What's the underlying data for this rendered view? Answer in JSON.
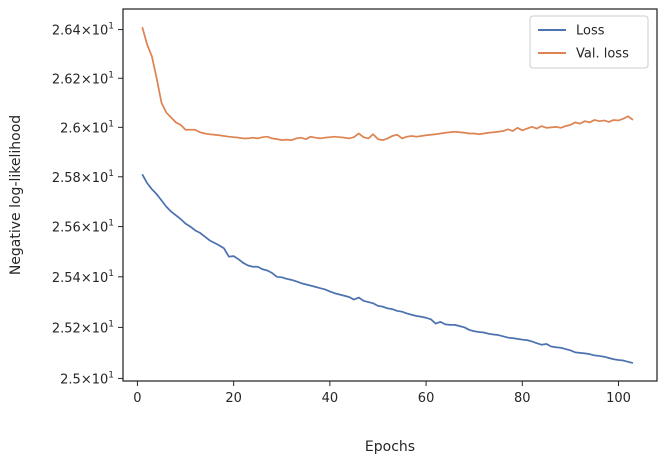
{
  "chart_data": {
    "type": "line",
    "xlabel": "Epochs",
    "ylabel": "Negative log-likelihood",
    "xlim": [
      -3,
      108
    ],
    "ylim": [
      24.99,
      26.485
    ],
    "y_scale": "log",
    "grid": false,
    "legend_position": "top-right",
    "x_ticks": [
      {
        "value": 0,
        "label": "0"
      },
      {
        "value": 20,
        "label": "20"
      },
      {
        "value": 40,
        "label": "40"
      },
      {
        "value": 60,
        "label": "60"
      },
      {
        "value": 80,
        "label": "80"
      },
      {
        "value": 100,
        "label": "100"
      }
    ],
    "y_ticks": [
      {
        "value": 25.0,
        "mantissa": "2.5",
        "base": "10",
        "exponent": "1"
      },
      {
        "value": 25.2,
        "mantissa": "2.52",
        "base": "10",
        "exponent": "1"
      },
      {
        "value": 25.4,
        "mantissa": "2.54",
        "base": "10",
        "exponent": "1"
      },
      {
        "value": 25.6,
        "mantissa": "2.56",
        "base": "10",
        "exponent": "1"
      },
      {
        "value": 25.8,
        "mantissa": "2.58",
        "base": "10",
        "exponent": "1"
      },
      {
        "value": 26.0,
        "mantissa": "2.6",
        "base": "10",
        "exponent": "1"
      },
      {
        "value": 26.2,
        "mantissa": "2.62",
        "base": "10",
        "exponent": "1"
      },
      {
        "value": 26.4,
        "mantissa": "2.64",
        "base": "10",
        "exponent": "1"
      }
    ],
    "series": [
      {
        "name": "Loss",
        "color": "#4c72b0",
        "x": [
          1,
          2,
          3,
          4,
          5,
          6,
          7,
          8,
          9,
          10,
          11,
          12,
          13,
          14,
          15,
          16,
          17,
          18,
          19,
          20,
          21,
          22,
          23,
          24,
          25,
          26,
          27,
          28,
          29,
          30,
          31,
          32,
          33,
          34,
          35,
          36,
          37,
          38,
          39,
          40,
          41,
          42,
          43,
          44,
          45,
          46,
          47,
          48,
          49,
          50,
          51,
          52,
          53,
          54,
          55,
          56,
          57,
          58,
          59,
          60,
          61,
          62,
          63,
          64,
          65,
          66,
          67,
          68,
          69,
          70,
          71,
          72,
          73,
          74,
          75,
          76,
          77,
          78,
          79,
          80,
          81,
          82,
          83,
          84,
          85,
          86,
          87,
          88,
          89,
          90,
          91,
          92,
          93,
          94,
          95,
          96,
          97,
          98,
          99,
          100,
          101,
          102,
          103
        ],
        "y": [
          25.81,
          25.775,
          25.75,
          25.73,
          25.705,
          25.68,
          25.66,
          25.645,
          25.63,
          25.612,
          25.6,
          25.585,
          25.575,
          25.56,
          25.545,
          25.535,
          25.525,
          25.513,
          25.48,
          25.482,
          25.47,
          25.455,
          25.445,
          25.44,
          25.44,
          25.43,
          25.425,
          25.415,
          25.4,
          25.398,
          25.392,
          25.388,
          25.382,
          25.375,
          25.37,
          25.365,
          25.36,
          25.355,
          25.35,
          25.342,
          25.335,
          25.33,
          25.325,
          25.32,
          25.31,
          25.318,
          25.305,
          25.3,
          25.295,
          25.285,
          25.282,
          25.275,
          25.272,
          25.265,
          25.262,
          25.255,
          25.25,
          25.245,
          25.242,
          25.238,
          25.232,
          25.215,
          25.222,
          25.212,
          25.21,
          25.21,
          25.205,
          25.2,
          25.19,
          25.185,
          25.182,
          25.18,
          25.175,
          25.172,
          25.17,
          25.165,
          25.16,
          25.158,
          25.155,
          25.152,
          25.15,
          25.145,
          25.138,
          25.132,
          25.135,
          25.125,
          25.122,
          25.12,
          25.115,
          25.11,
          25.102,
          25.1,
          25.098,
          25.095,
          25.09,
          25.088,
          25.085,
          25.08,
          25.075,
          25.072,
          25.07,
          25.065,
          25.06
        ]
      },
      {
        "name": "Val. loss",
        "color": "#dd8452",
        "x": [
          1,
          2,
          3,
          4,
          5,
          6,
          7,
          8,
          9,
          10,
          11,
          12,
          13,
          14,
          15,
          16,
          17,
          18,
          19,
          20,
          21,
          22,
          23,
          24,
          25,
          26,
          27,
          28,
          29,
          30,
          31,
          32,
          33,
          34,
          35,
          36,
          37,
          38,
          39,
          40,
          41,
          42,
          43,
          44,
          45,
          46,
          47,
          48,
          49,
          50,
          51,
          52,
          53,
          54,
          55,
          56,
          57,
          58,
          59,
          60,
          61,
          62,
          63,
          64,
          65,
          66,
          67,
          68,
          69,
          70,
          71,
          72,
          73,
          74,
          75,
          76,
          77,
          78,
          79,
          80,
          81,
          82,
          83,
          84,
          85,
          86,
          87,
          88,
          89,
          90,
          91,
          92,
          93,
          94,
          95,
          96,
          97,
          98,
          99,
          100,
          101,
          102,
          103
        ],
        "y": [
          26.41,
          26.34,
          26.29,
          26.2,
          26.1,
          26.06,
          26.04,
          26.02,
          26.01,
          25.99,
          25.99,
          25.99,
          25.98,
          25.975,
          25.972,
          25.97,
          25.968,
          25.965,
          25.962,
          25.96,
          25.958,
          25.955,
          25.955,
          25.958,
          25.955,
          25.96,
          25.962,
          25.955,
          25.952,
          25.948,
          25.95,
          25.948,
          25.955,
          25.958,
          25.952,
          25.962,
          25.958,
          25.955,
          25.958,
          25.96,
          25.962,
          25.96,
          25.958,
          25.955,
          25.96,
          25.975,
          25.96,
          25.955,
          25.972,
          25.952,
          25.948,
          25.955,
          25.965,
          25.97,
          25.955,
          25.962,
          25.965,
          25.962,
          25.965,
          25.968,
          25.97,
          25.972,
          25.975,
          25.978,
          25.98,
          25.982,
          25.98,
          25.978,
          25.975,
          25.975,
          25.972,
          25.975,
          25.978,
          25.98,
          25.982,
          25.985,
          25.992,
          25.985,
          25.998,
          25.988,
          25.995,
          26.002,
          25.995,
          26.005,
          25.998,
          26.0,
          26.002,
          25.998,
          26.005,
          26.01,
          26.02,
          26.015,
          26.025,
          26.02,
          26.03,
          26.025,
          26.028,
          26.022,
          26.03,
          26.028,
          26.035,
          26.045,
          26.03
        ]
      }
    ]
  }
}
